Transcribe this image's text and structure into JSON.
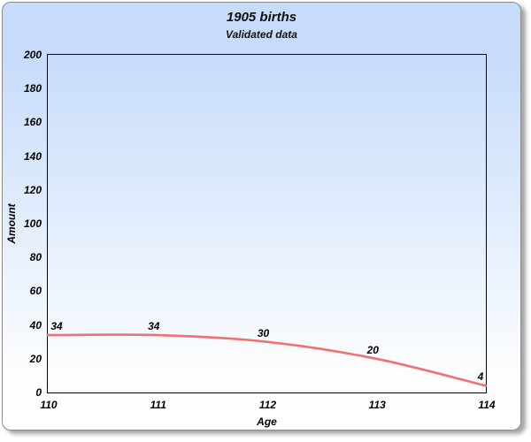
{
  "header": {
    "title": "1905 births",
    "subtitle": "Validated data"
  },
  "colors": {
    "card_background_top": "#c7dcfa",
    "card_background_bottom": "#ffffff",
    "card_border": "#8c8c8c",
    "plot_border": "#000000",
    "line_color": "#f17173",
    "text_color": "#111111"
  },
  "chart_data": {
    "type": "line",
    "title": "1905 births",
    "subtitle": "Validated data",
    "xlabel": "Age",
    "ylabel": "Amount",
    "x": [
      110,
      111,
      112,
      113,
      114
    ],
    "values": [
      34,
      34,
      30,
      20,
      4
    ],
    "data_labels": [
      "34",
      "34",
      "30",
      "20",
      "4"
    ],
    "xticks": [
      110,
      111,
      112,
      113,
      114
    ],
    "yticks": [
      0,
      20,
      40,
      60,
      80,
      100,
      120,
      140,
      160,
      180,
      200
    ],
    "xlim": [
      110,
      114
    ],
    "ylim": [
      0,
      200
    ],
    "grid": false,
    "legend": "none",
    "line_color": "#f17173"
  }
}
